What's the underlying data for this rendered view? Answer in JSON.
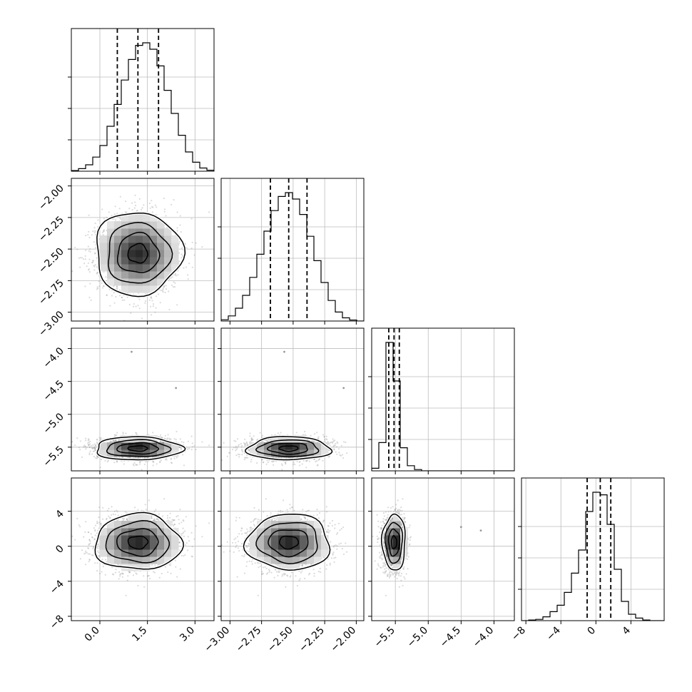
{
  "chart_data": {
    "type": "corner",
    "kind": "corner plot (posterior samples, 4 parameters)",
    "grid": true,
    "quantile_lines": "dashed",
    "histogram_color": "#000000",
    "sample_color": "#999999",
    "parameters": [
      {
        "range": [
          -0.9,
          3.6
        ],
        "ticks": [
          0.0,
          1.5,
          3.0
        ],
        "tick_labels": [
          "0.0",
          "1.5",
          "3.0"
        ],
        "quantiles": [
          0.55,
          1.2,
          1.85
        ],
        "mean": 1.2,
        "sd": 0.62
      },
      {
        "range": [
          -3.07,
          -1.94
        ],
        "ticks": [
          -3.0,
          -2.75,
          -2.5,
          -2.25,
          -2.0
        ],
        "tick_labels": [
          "−3.00",
          "−2.75",
          "−2.50",
          "−2.25",
          "−2.00"
        ],
        "quantiles": [
          -2.68,
          -2.535,
          -2.39
        ],
        "mean": -2.535,
        "sd": 0.15
      },
      {
        "range": [
          -5.86,
          -3.69
        ],
        "ticks": [
          -5.5,
          -5.0,
          -4.5,
          -4.0
        ],
        "tick_labels": [
          "−5.5",
          "−5.0",
          "−4.5",
          "−4.0"
        ],
        "quantiles": [
          -5.6,
          -5.52,
          -5.44
        ],
        "mean": -5.52,
        "sd": 0.08
      },
      {
        "range": [
          -8.5,
          7.8
        ],
        "ticks": [
          -8,
          -4,
          0,
          4
        ],
        "tick_labels": [
          "−8",
          "−4",
          "0",
          "4"
        ],
        "quantiles": [
          -1.0,
          0.5,
          1.7
        ],
        "mean": 0.45,
        "sd": 1.45
      }
    ],
    "diagonal_histograms": [
      {
        "bin_edges": [
          -0.9,
          -0.675,
          -0.45,
          -0.225,
          0.0,
          0.225,
          0.45,
          0.675,
          0.9,
          1.125,
          1.35,
          1.575,
          1.8,
          2.025,
          2.25,
          2.475,
          2.7,
          2.925,
          3.15,
          3.375,
          3.6
        ],
        "counts": [
          0.005,
          0.02,
          0.05,
          0.11,
          0.2,
          0.35,
          0.52,
          0.71,
          0.87,
          0.98,
          1.0,
          0.95,
          0.82,
          0.63,
          0.45,
          0.28,
          0.15,
          0.07,
          0.025,
          0.008
        ]
      },
      {
        "bin_edges": [
          -3.07,
          -3.0135,
          -2.957,
          -2.9005,
          -2.844,
          -2.7875,
          -2.731,
          -2.6745,
          -2.618,
          -2.5615,
          -2.505,
          -2.4485,
          -2.392,
          -2.3355,
          -2.279,
          -2.2225,
          -2.166,
          -2.1095,
          -2.053,
          -1.9965,
          -1.94
        ],
        "counts": [
          0.01,
          0.04,
          0.1,
          0.2,
          0.34,
          0.52,
          0.7,
          0.86,
          0.97,
          1.0,
          0.95,
          0.83,
          0.66,
          0.47,
          0.3,
          0.16,
          0.07,
          0.025,
          0.008,
          0.0
        ]
      },
      {
        "bin_edges": [
          -5.86,
          -5.7515,
          -5.643,
          -5.5345,
          -5.426,
          -5.3175,
          -5.209,
          -5.1005,
          -4.992,
          -4.8835,
          -4.775,
          -4.6665,
          -4.558,
          -4.4495,
          -4.341,
          -4.2325,
          -4.124,
          -4.0155,
          -3.907,
          -3.7985,
          -3.69
        ],
        "counts": [
          0.02,
          0.22,
          1.0,
          0.7,
          0.18,
          0.04,
          0.01,
          0.0,
          0.0,
          0.0,
          0.0,
          0.0,
          0.0,
          0.0,
          0.0,
          0.0,
          0.0,
          0.0,
          0.0,
          0.0
        ]
      },
      {
        "bin_edges": [
          -8.5,
          -7.685,
          -6.87,
          -6.055,
          -5.24,
          -4.425,
          -3.61,
          -2.795,
          -1.98,
          -1.165,
          -0.35,
          0.465,
          1.28,
          2.095,
          2.91,
          3.725,
          4.54,
          5.355,
          6.17,
          6.985,
          7.8
        ],
        "counts": [
          0.0,
          0.005,
          0.01,
          0.03,
          0.07,
          0.12,
          0.22,
          0.37,
          0.55,
          0.85,
          1.0,
          0.98,
          0.75,
          0.4,
          0.15,
          0.05,
          0.02,
          0.005,
          0.0,
          0.0
        ]
      }
    ],
    "outliers": [
      {
        "params": [
          2,
          1
        ],
        "x": -2.57,
        "y": -4.05
      },
      {
        "params": [
          2,
          0
        ],
        "x": 1.0,
        "y": -4.05
      },
      {
        "params": [
          3,
          2
        ],
        "x": -4.2,
        "y": 1.8
      },
      {
        "params": [
          3,
          2
        ],
        "x": -4.5,
        "y": 2.2
      },
      {
        "params": [
          2,
          1
        ],
        "x": -2.1,
        "y": -4.6
      },
      {
        "params": [
          2,
          0
        ],
        "x": 2.4,
        "y": -4.6
      }
    ]
  }
}
